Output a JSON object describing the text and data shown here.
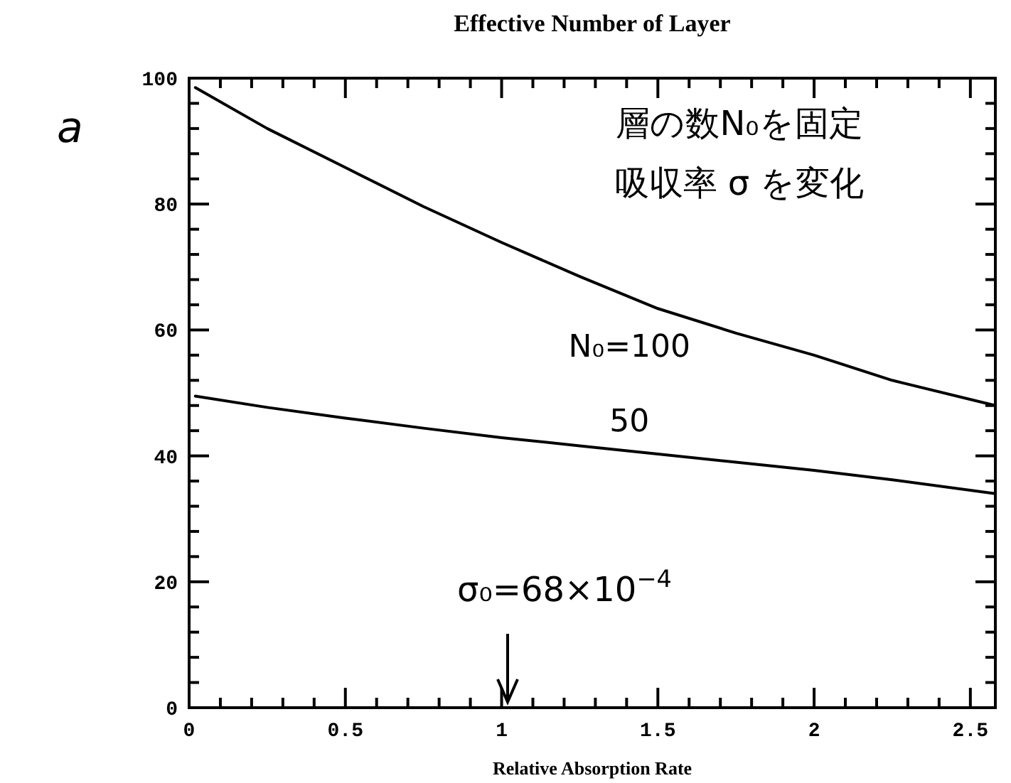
{
  "chart_data": {
    "type": "line",
    "title": "Effective Number of Layer",
    "xlabel": "Relative Absorption Rate",
    "x": [
      0.02,
      0.25,
      0.5,
      0.75,
      1,
      1.25,
      1.5,
      1.75,
      2,
      2.25,
      2.58
    ],
    "series": [
      {
        "name": "N₀=100",
        "color": "#000000",
        "values": [
          98.5,
          92,
          85.8,
          79.6,
          73.9,
          68.5,
          63.4,
          59.5,
          56,
          52,
          48
        ]
      },
      {
        "name": "50",
        "color": "#000000",
        "values": [
          49.5,
          47.7,
          46,
          44.4,
          42.9,
          41.6,
          40.3,
          39,
          37.7,
          36.2,
          34
        ]
      }
    ],
    "xlim": [
      0,
      2.58
    ],
    "ylim": [
      0,
      100
    ],
    "xticks": [
      0,
      {
        "value": 0.1,
        "label": null
      },
      {
        "value": 0.2,
        "label": null
      },
      {
        "value": 0.3,
        "label": null
      },
      {
        "value": 0.4,
        "label": null
      },
      0.5,
      {
        "value": 0.6,
        "label": null
      },
      {
        "value": 0.7,
        "label": null
      },
      {
        "value": 0.8,
        "label": null
      },
      {
        "value": 0.9,
        "label": null
      },
      1,
      {
        "value": 1.1,
        "label": null
      },
      {
        "value": 1.2,
        "label": null
      },
      {
        "value": 1.3,
        "label": null
      },
      {
        "value": 1.4,
        "label": null
      },
      1.5,
      {
        "value": 1.6,
        "label": null
      },
      {
        "value": 1.7,
        "label": null
      },
      {
        "value": 1.8,
        "label": null
      },
      {
        "value": 1.9,
        "label": null
      },
      2,
      {
        "value": 2.1,
        "label": null
      },
      {
        "value": 2.2,
        "label": null
      },
      {
        "value": 2.3,
        "label": null
      },
      {
        "value": 2.4,
        "label": null
      },
      2.5
    ],
    "yticks": [
      0,
      {
        "value": 4,
        "label": null
      },
      {
        "value": 8,
        "label": null
      },
      {
        "value": 12,
        "label": null
      },
      {
        "value": 16,
        "label": null
      },
      20,
      {
        "value": 24,
        "label": null
      },
      {
        "value": 28,
        "label": null
      },
      {
        "value": 32,
        "label": null
      },
      {
        "value": 36,
        "label": null
      },
      40,
      {
        "value": 44,
        "label": null
      },
      {
        "value": 48,
        "label": null
      },
      {
        "value": 52,
        "label": null
      },
      {
        "value": 56,
        "label": null
      },
      60,
      {
        "value": 64,
        "label": null
      },
      {
        "value": 68,
        "label": null
      },
      {
        "value": 72,
        "label": null
      },
      {
        "value": 76,
        "label": null
      },
      80,
      {
        "value": 84,
        "label": null
      },
      {
        "value": 88,
        "label": null
      },
      {
        "value": 92,
        "label": null
      },
      {
        "value": 96,
        "label": null
      },
      100
    ],
    "annotations": [
      "a",
      "層の数N₀を固定",
      "吸収率 σ を変化",
      "σ₀=68×10$^{−4}$"
    ],
    "grid": false,
    "legend": false,
    "marker": "none",
    "line_style": "solid"
  }
}
